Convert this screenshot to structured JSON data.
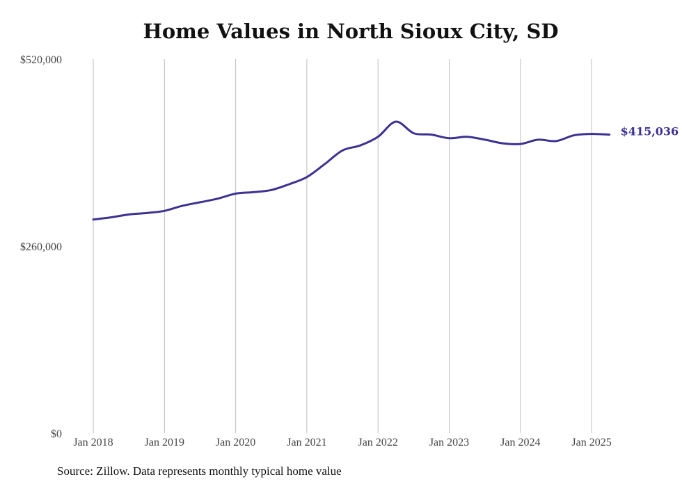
{
  "colors": {
    "line": "#3d3192",
    "grid": "#bdbdbd",
    "text": "#444444"
  },
  "chart_data": {
    "type": "line",
    "title": "Home Values in North Sioux City, SD",
    "source": "Source: Zillow. Data represents monthly typical home value",
    "ylim": [
      0,
      520000
    ],
    "y_ticks": [
      {
        "value": 0,
        "label": "$0"
      },
      {
        "value": 260000,
        "label": "$260,000"
      },
      {
        "value": 520000,
        "label": "$520,000"
      }
    ],
    "x_ticks": [
      "Jan 2018",
      "Jan 2019",
      "Jan 2020",
      "Jan 2021",
      "Jan 2022",
      "Jan 2023",
      "Jan 2024",
      "Jan 2025"
    ],
    "x_range": [
      "2018-01",
      "2025-04"
    ],
    "grid": "vertical",
    "end_label": "$415,036",
    "series": [
      {
        "x": [
          "2018-01",
          "2018-04",
          "2018-07",
          "2018-10",
          "2019-01",
          "2019-04",
          "2019-07",
          "2019-10",
          "2020-01",
          "2020-04",
          "2020-07",
          "2020-10",
          "2021-01",
          "2021-04",
          "2021-07",
          "2021-10",
          "2022-01",
          "2022-04",
          "2022-07",
          "2022-10",
          "2023-01",
          "2023-04",
          "2023-07",
          "2023-10",
          "2024-01",
          "2024-04",
          "2024-07",
          "2024-10",
          "2025-01",
          "2025-04"
        ],
        "values": [
          297000,
          300000,
          304000,
          306000,
          309000,
          316000,
          321000,
          326000,
          333000,
          335000,
          338000,
          346000,
          356000,
          374000,
          393000,
          400000,
          412000,
          433000,
          417000,
          415000,
          410000,
          412000,
          408000,
          403000,
          402000,
          408000,
          406000,
          414000,
          416000,
          415036
        ]
      }
    ]
  }
}
